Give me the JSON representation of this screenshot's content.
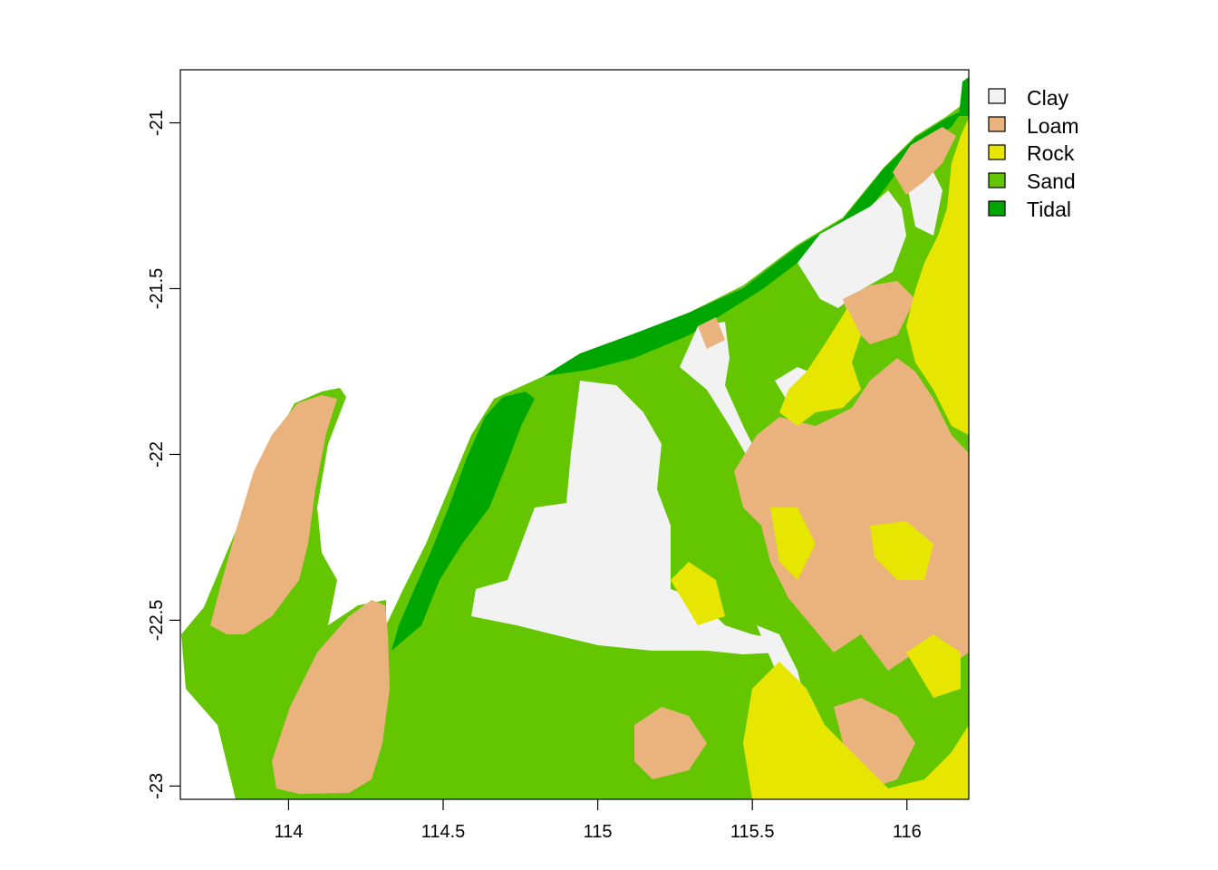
{
  "map": {
    "x_axis": {
      "ticks": [
        {
          "value": 114,
          "label": "114"
        },
        {
          "value": 114.5,
          "label": "114.5"
        },
        {
          "value": 115,
          "label": "115"
        },
        {
          "value": 115.5,
          "label": "115.5"
        },
        {
          "value": 116,
          "label": "116"
        }
      ],
      "range": [
        113.65,
        116.2
      ]
    },
    "y_axis": {
      "ticks": [
        {
          "value": -21,
          "label": "-21"
        },
        {
          "value": -21.5,
          "label": "-21.5"
        },
        {
          "value": -22,
          "label": "-22"
        },
        {
          "value": -22.5,
          "label": "-22.5"
        },
        {
          "value": -23,
          "label": "-23"
        }
      ],
      "range": [
        -23.04,
        -20.84
      ]
    },
    "legend": {
      "position": "top-right",
      "items": [
        {
          "label": "Clay",
          "color": "#F2F2F2"
        },
        {
          "label": "Loam",
          "color": "#EAB27C"
        },
        {
          "label": "Rock",
          "color": "#E6E600"
        },
        {
          "label": "Sand",
          "color": "#63C600"
        },
        {
          "label": "Tidal",
          "color": "#00A600"
        }
      ]
    }
  }
}
